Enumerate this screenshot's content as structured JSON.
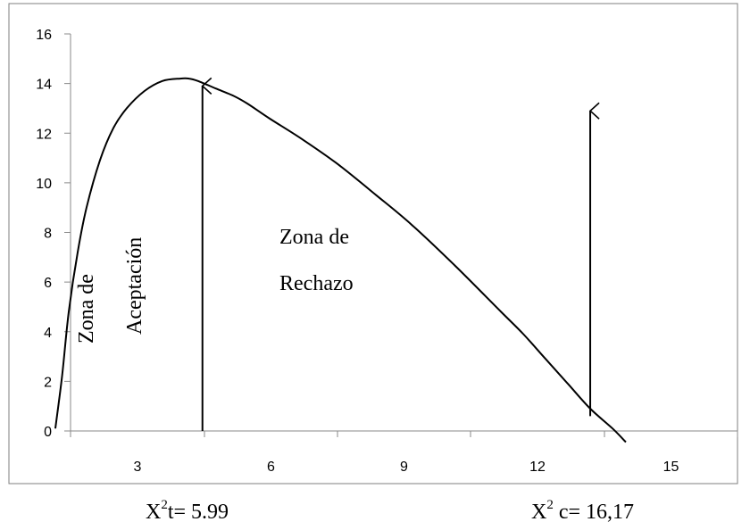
{
  "chart_data": {
    "type": "line",
    "title": "",
    "xlabel": "",
    "ylabel": "",
    "y_ticks": [
      "0",
      "2",
      "4",
      "6",
      "8",
      "10",
      "12",
      "14",
      "16"
    ],
    "x_ticks": [
      "3",
      "6",
      "9",
      "12",
      "15"
    ],
    "ylim": [
      0,
      16
    ],
    "grid": false,
    "legend": "none",
    "curve": {
      "x": [
        0,
        0.15,
        0.3,
        0.5,
        0.7,
        1.0,
        1.3,
        1.6,
        2.0,
        2.4,
        2.8,
        3.0,
        3.2,
        3.6,
        4.0,
        4.3,
        4.8,
        5.5,
        6.3,
        7.2,
        8.0,
        9.0,
        10.0,
        10.5,
        11.0,
        11.5,
        12.0,
        12.5,
        12.8
      ],
      "y": [
        0.1,
        2.2,
        4.8,
        7.2,
        9.0,
        10.9,
        12.2,
        13.0,
        13.7,
        14.1,
        14.2,
        14.2,
        14.1,
        13.8,
        13.5,
        13.2,
        12.6,
        11.8,
        10.8,
        9.5,
        8.3,
        6.6,
        4.8,
        3.9,
        2.9,
        1.9,
        0.9,
        0.1,
        -0.45
      ]
    },
    "arrows": [
      {
        "name": "critical-table",
        "x": 3.3,
        "y_from": 0,
        "y_to": 13.9
      },
      {
        "name": "critical-calculated",
        "x": 12.0,
        "y_from": 0.6,
        "y_to": 12.9
      }
    ],
    "annotations": {
      "zona_de_vertical": "Zona de",
      "aceptacion_vertical": "Aceptación",
      "zona_de": "Zona de",
      "rechazo": "Rechazo"
    }
  },
  "labels": {
    "x2t_base": "X",
    "x2t_sup": "2",
    "x2t_rest": "t= 5.99",
    "x2c_base": "X",
    "x2c_sup": "2",
    "x2c_rest": " c= 16,17"
  }
}
